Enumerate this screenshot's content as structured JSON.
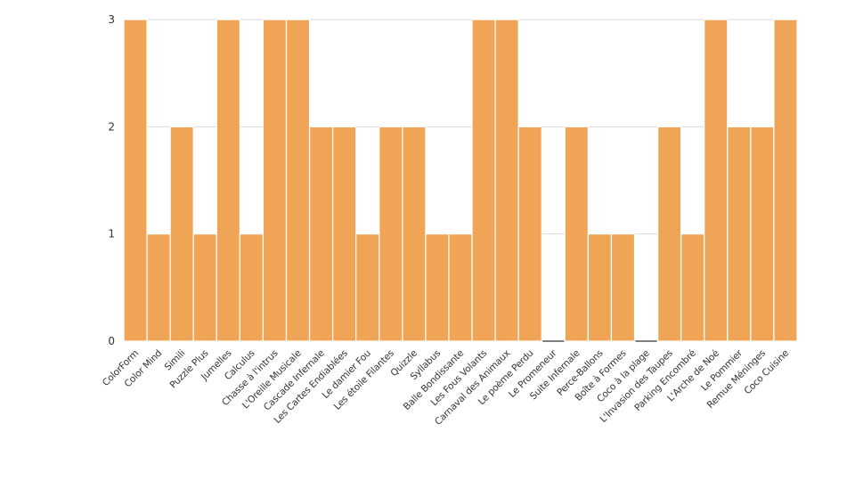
{
  "chart_data": {
    "type": "bar",
    "categories": [
      "ColorForm",
      "Color Mind",
      "Simili",
      "Puzzle Plus",
      "Jumelles",
      "Calculus",
      "Chasse à l'intrus",
      "L'Oreille Musicale",
      "Cascade Infernale",
      "Les Cartes Endiablées",
      "Le damier Fou",
      "Les étoile Filantes",
      "Quizzle",
      "Syllabus",
      "Balle Bondissante",
      "Les Fous Volants",
      "Carnaval des Animaux",
      "Le poème Perdu",
      "Le Promeneur",
      "Suite Infernale",
      "Perce-Ballons",
      "Boîte à Formes",
      "Coco à la plage",
      "L'Invasion des Taupes",
      "Parking Encombré",
      "L'Arche de Noé",
      "Le Pommier",
      "Remue Méninges",
      "Coco Cuisine"
    ],
    "values": [
      3,
      1,
      2,
      1,
      3,
      1,
      3,
      3,
      2,
      2,
      1,
      2,
      2,
      1,
      1,
      3,
      3,
      2,
      0,
      2,
      1,
      1,
      0,
      2,
      1,
      3,
      2,
      2,
      3
    ],
    "ylim": [
      0,
      3
    ],
    "yticks": [
      "0",
      "1",
      "2",
      "3"
    ],
    "grid": true,
    "legend": "none",
    "colors": {
      "bar": "#F0A456",
      "zero_bar": "#7f7f7f"
    },
    "title": "",
    "xlabel": "",
    "ylabel": ""
  }
}
